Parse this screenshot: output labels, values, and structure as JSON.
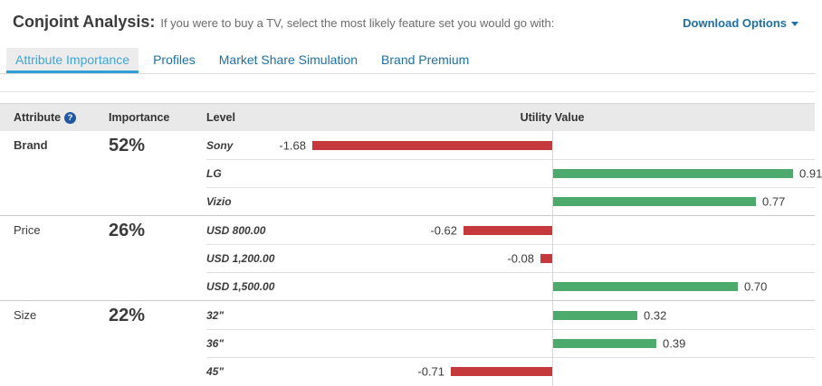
{
  "header": {
    "title": "Conjoint Analysis:",
    "subtitle": "If you were to buy a TV, select the most likely feature set you would go with:",
    "download_label": "Download Options"
  },
  "tabs": [
    {
      "label": "Attribute Importance",
      "active": true
    },
    {
      "label": "Profiles",
      "active": false
    },
    {
      "label": "Market Share Simulation",
      "active": false
    },
    {
      "label": "Brand Premium",
      "active": false
    }
  ],
  "table": {
    "columns": [
      "Attribute",
      "Importance",
      "Level",
      "Utility Value"
    ],
    "help_glyph": "?"
  },
  "chart_data": {
    "type": "bar",
    "orientation": "horizontal",
    "value_column": "Utility Value",
    "negative_color": "#c5393d",
    "positive_color": "#4caa6d",
    "zero_axis_line": true,
    "scale_note": "negative and positive sides each scaled to their own max",
    "sections": [
      {
        "attribute": "Brand",
        "importance": "52%",
        "emphasis": true,
        "levels": [
          {
            "label": "Sony",
            "value": -1.68
          },
          {
            "label": "LG",
            "value": 0.91
          },
          {
            "label": "Vizio",
            "value": 0.77
          }
        ]
      },
      {
        "attribute": "Price",
        "importance": "26%",
        "emphasis": false,
        "levels": [
          {
            "label": "USD 800.00",
            "value": -0.62
          },
          {
            "label": "USD 1,200.00",
            "value": -0.08
          },
          {
            "label": "USD 1,500.00",
            "value": 0.7
          }
        ]
      },
      {
        "attribute": "Size",
        "importance": "22%",
        "emphasis": false,
        "levels": [
          {
            "label": "32\"",
            "value": 0.32
          },
          {
            "label": "36\"",
            "value": 0.39
          },
          {
            "label": "45\"",
            "value": -0.71
          }
        ]
      }
    ]
  }
}
